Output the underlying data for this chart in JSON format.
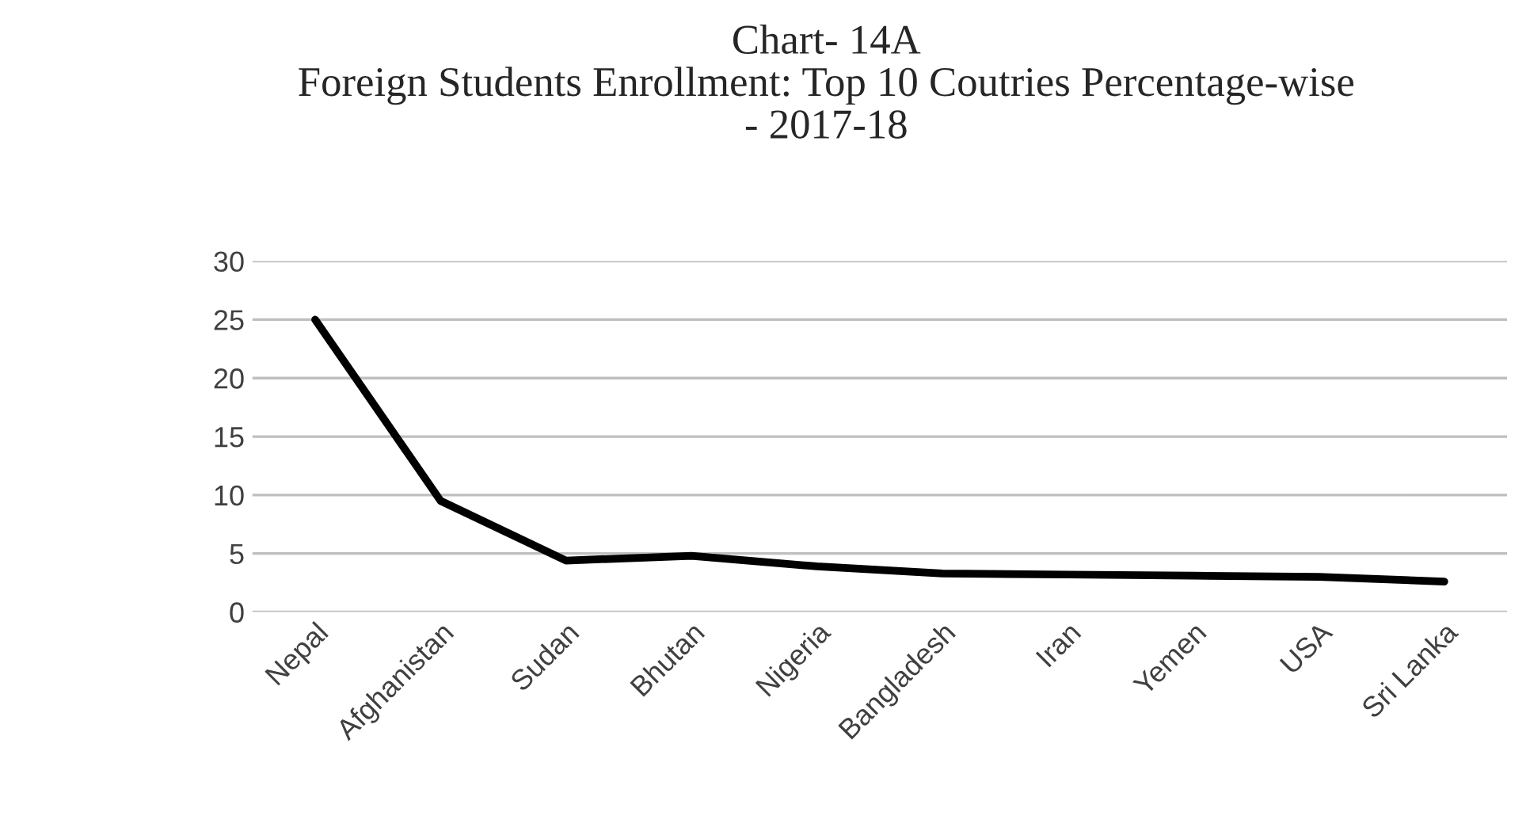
{
  "chart_data": {
    "type": "line",
    "title": "Chart- 14A\nForeign Students Enrollment: Top 10 Coutries Percentage-wise\n- 2017-18",
    "categories": [
      "Nepal",
      "Afghanistan",
      "Sudan",
      "Bhutan",
      "Nigeria",
      "Bangladesh",
      "Iran",
      "Yemen",
      "USA",
      "Sri Lanka"
    ],
    "series": [
      {
        "color": "#000000",
        "values": [
          25,
          9.5,
          4.4,
          4.8,
          3.9,
          3.3,
          3.2,
          3.1,
          3.0,
          2.6
        ]
      }
    ],
    "ylim": [
      0,
      30
    ],
    "yticks": [
      0,
      5,
      10,
      15,
      20,
      25,
      30
    ],
    "grid": "y",
    "legend": false,
    "marker": "none",
    "line_style": "solid"
  }
}
